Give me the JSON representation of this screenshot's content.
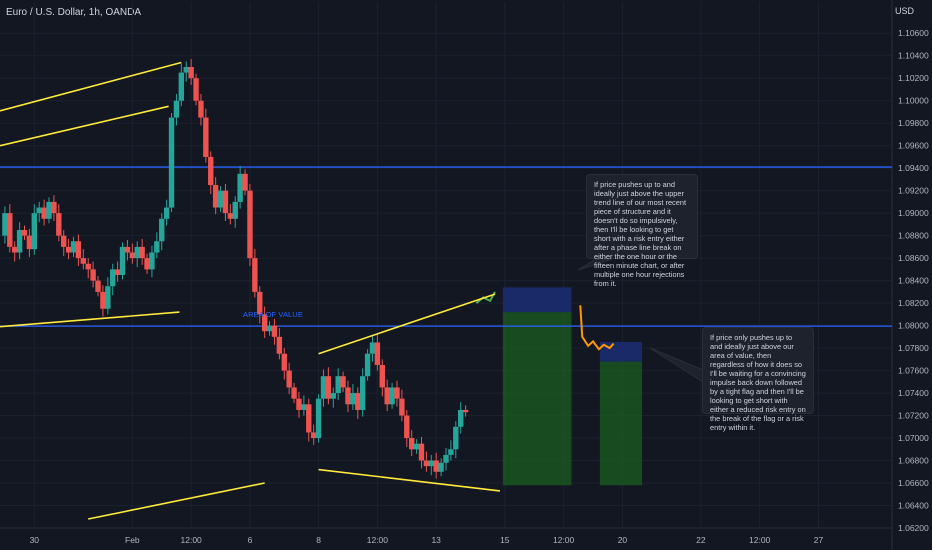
{
  "header": {
    "symbol": "Euro / U.S. Dollar, 1h, OANDA",
    "currency": "USD"
  },
  "colors": {
    "bg": "#131722",
    "up": "#26a69a",
    "down": "#ef5350",
    "trend": "#ffeb3b",
    "level": "#2962ff",
    "target": "#1b5e20",
    "stop": "#1a2a6c",
    "grid": "#1c2130"
  },
  "chart_data": {
    "type": "candlestick",
    "ylim": [
      1.062,
      1.107
    ],
    "y_ticks": [
      "1.10600",
      "1.10400",
      "1.10200",
      "1.10000",
      "1.09800",
      "1.09600",
      "1.09400",
      "1.09200",
      "1.09000",
      "1.08800",
      "1.08600",
      "1.08400",
      "1.08200",
      "1.08000",
      "1.07800",
      "1.07600",
      "1.07400",
      "1.07200",
      "1.07000",
      "1.06800",
      "1.06600",
      "1.06400",
      "1.06200"
    ],
    "y_tick_values": [
      1.106,
      1.104,
      1.102,
      1.1,
      1.098,
      1.096,
      1.094,
      1.092,
      1.09,
      1.088,
      1.086,
      1.084,
      1.082,
      1.08,
      1.078,
      1.076,
      1.074,
      1.072,
      1.07,
      1.068,
      1.066,
      1.064,
      1.062
    ],
    "x_ticks": [
      {
        "label": "30",
        "x": 0.5
      },
      {
        "label": "Feb",
        "x": 10.5
      },
      {
        "label": "12:00",
        "x": 16.5
      },
      {
        "label": "6",
        "x": 22.5
      },
      {
        "label": "8",
        "x": 29.5
      },
      {
        "label": "12:00",
        "x": 35.5
      },
      {
        "label": "13",
        "x": 41.5
      },
      {
        "label": "15",
        "x": 48.5
      },
      {
        "label": "12:00",
        "x": 54.5
      },
      {
        "label": "20",
        "x": 60.5
      },
      {
        "label": "22",
        "x": 68.5
      },
      {
        "label": "12:00",
        "x": 74.5
      },
      {
        "label": "27",
        "x": 80.5
      }
    ],
    "x_range": [
      -3,
      88
    ],
    "price_path": [
      {
        "x": -3,
        "y": 1.088
      },
      {
        "x": -2.5,
        "y": 1.09
      },
      {
        "x": -2,
        "y": 1.087
      },
      {
        "x": -1.5,
        "y": 1.0865
      },
      {
        "x": -1,
        "y": 1.0885
      },
      {
        "x": -0.5,
        "y": 1.088
      },
      {
        "x": 0,
        "y": 1.0868
      },
      {
        "x": 0.5,
        "y": 1.09
      },
      {
        "x": 1,
        "y": 1.0905
      },
      {
        "x": 1.5,
        "y": 1.0895
      },
      {
        "x": 2,
        "y": 1.091
      },
      {
        "x": 2.5,
        "y": 1.09
      },
      {
        "x": 3,
        "y": 1.088
      },
      {
        "x": 3.5,
        "y": 1.087
      },
      {
        "x": 4,
        "y": 1.0865
      },
      {
        "x": 4.5,
        "y": 1.0875
      },
      {
        "x": 5,
        "y": 1.086
      },
      {
        "x": 5.5,
        "y": 1.0855
      },
      {
        "x": 6,
        "y": 1.085
      },
      {
        "x": 6.5,
        "y": 1.084
      },
      {
        "x": 7,
        "y": 1.083
      },
      {
        "x": 7.5,
        "y": 1.0815
      },
      {
        "x": 8,
        "y": 1.0835
      },
      {
        "x": 8.5,
        "y": 1.085
      },
      {
        "x": 9,
        "y": 1.0845
      },
      {
        "x": 9.5,
        "y": 1.087
      },
      {
        "x": 10,
        "y": 1.0865
      },
      {
        "x": 10.5,
        "y": 1.086
      },
      {
        "x": 11,
        "y": 1.087
      },
      {
        "x": 11.5,
        "y": 1.086
      },
      {
        "x": 12,
        "y": 1.085
      },
      {
        "x": 12.5,
        "y": 1.0865
      },
      {
        "x": 13,
        "y": 1.0875
      },
      {
        "x": 13.5,
        "y": 1.0895
      },
      {
        "x": 14,
        "y": 1.0905
      },
      {
        "x": 14.5,
        "y": 1.0985
      },
      {
        "x": 15,
        "y": 1.1
      },
      {
        "x": 15.5,
        "y": 1.1025
      },
      {
        "x": 16,
        "y": 1.103
      },
      {
        "x": 16.5,
        "y": 1.102
      },
      {
        "x": 17,
        "y": 1.1
      },
      {
        "x": 17.5,
        "y": 1.0985
      },
      {
        "x": 18,
        "y": 1.095
      },
      {
        "x": 18.5,
        "y": 1.0925
      },
      {
        "x": 19,
        "y": 1.0905
      },
      {
        "x": 19.5,
        "y": 1.092
      },
      {
        "x": 20,
        "y": 1.09
      },
      {
        "x": 20.5,
        "y": 1.0895
      },
      {
        "x": 21,
        "y": 1.091
      },
      {
        "x": 21.5,
        "y": 1.0935
      },
      {
        "x": 22,
        "y": 1.092
      },
      {
        "x": 22.5,
        "y": 1.086
      },
      {
        "x": 23,
        "y": 1.083
      },
      {
        "x": 23.5,
        "y": 1.081
      },
      {
        "x": 24,
        "y": 1.0795
      },
      {
        "x": 24.5,
        "y": 1.08
      },
      {
        "x": 25,
        "y": 1.079
      },
      {
        "x": 25.5,
        "y": 1.0775
      },
      {
        "x": 26,
        "y": 1.076
      },
      {
        "x": 26.5,
        "y": 1.0745
      },
      {
        "x": 27,
        "y": 1.0735
      },
      {
        "x": 27.5,
        "y": 1.0725
      },
      {
        "x": 28,
        "y": 1.073
      },
      {
        "x": 28.5,
        "y": 1.0705
      },
      {
        "x": 29,
        "y": 1.07
      },
      {
        "x": 29.5,
        "y": 1.0735
      },
      {
        "x": 30,
        "y": 1.0755
      },
      {
        "x": 30.5,
        "y": 1.0735
      },
      {
        "x": 31,
        "y": 1.074
      },
      {
        "x": 31.5,
        "y": 1.0755
      },
      {
        "x": 32,
        "y": 1.0745
      },
      {
        "x": 32.5,
        "y": 1.073
      },
      {
        "x": 33,
        "y": 1.074
      },
      {
        "x": 33.5,
        "y": 1.0725
      },
      {
        "x": 34,
        "y": 1.0755
      },
      {
        "x": 34.5,
        "y": 1.0775
      },
      {
        "x": 35,
        "y": 1.0785
      },
      {
        "x": 35.5,
        "y": 1.0765
      },
      {
        "x": 36,
        "y": 1.0745
      },
      {
        "x": 36.5,
        "y": 1.073
      },
      {
        "x": 37,
        "y": 1.0745
      },
      {
        "x": 37.5,
        "y": 1.0735
      },
      {
        "x": 38,
        "y": 1.072
      },
      {
        "x": 38.5,
        "y": 1.07
      },
      {
        "x": 39,
        "y": 1.069
      },
      {
        "x": 39.5,
        "y": 1.0695
      },
      {
        "x": 40,
        "y": 1.068
      },
      {
        "x": 40.5,
        "y": 1.0675
      },
      {
        "x": 41,
        "y": 1.068
      },
      {
        "x": 41.5,
        "y": 1.067
      },
      {
        "x": 42,
        "y": 1.0678
      },
      {
        "x": 42.5,
        "y": 1.0685
      },
      {
        "x": 43,
        "y": 1.069
      },
      {
        "x": 43.5,
        "y": 1.071
      },
      {
        "x": 44,
        "y": 1.0725
      },
      {
        "x": 44.5,
        "y": 1.0723
      }
    ],
    "projections": [
      {
        "name": "upper-projection",
        "points": [
          {
            "x": 45.6,
            "y": 1.082
          },
          {
            "x": 46.3,
            "y": 1.0825
          },
          {
            "x": 47,
            "y": 1.0822
          },
          {
            "x": 47.5,
            "y": 1.083
          }
        ]
      },
      {
        "name": "lower-projection",
        "points": [
          {
            "x": 56.2,
            "y": 1.0818
          },
          {
            "x": 56.4,
            "y": 1.079
          },
          {
            "x": 57,
            "y": 1.0782
          },
          {
            "x": 57.5,
            "y": 1.0786
          },
          {
            "x": 58.1,
            "y": 1.0779
          },
          {
            "x": 58.6,
            "y": 1.0783
          },
          {
            "x": 59.2,
            "y": 1.078
          },
          {
            "x": 59.6,
            "y": 1.0784
          }
        ]
      }
    ],
    "horizontal_lines": [
      {
        "name": "resistance-line",
        "y": 1.0941,
        "x_from": -3,
        "x_to": 88
      },
      {
        "name": "area-of-value-line",
        "y": 1.07995,
        "x_from": -3,
        "x_to": 88
      }
    ],
    "trendlines": [
      {
        "name": "upper-channel-1",
        "from": {
          "x": -3,
          "y": 1.0991
        },
        "to": {
          "x": 15.5,
          "y": 1.1034
        }
      },
      {
        "name": "upper-channel-2",
        "from": {
          "x": -3,
          "y": 1.096
        },
        "to": {
          "x": 14.2,
          "y": 1.0995
        }
      },
      {
        "name": "lower-channel-1",
        "from": {
          "x": -3,
          "y": 1.0799
        },
        "to": {
          "x": 15.3,
          "y": 1.0812
        }
      },
      {
        "name": "lower-channel-2",
        "from": {
          "x": 6,
          "y": 1.0628
        },
        "to": {
          "x": 24,
          "y": 1.066
        }
      },
      {
        "name": "wedge-upper",
        "from": {
          "x": 29.5,
          "y": 1.0775
        },
        "to": {
          "x": 47.5,
          "y": 1.0828
        }
      },
      {
        "name": "wedge-lower",
        "from": {
          "x": 29.5,
          "y": 1.0672
        },
        "to": {
          "x": 48,
          "y": 1.0653
        }
      }
    ],
    "positions": [
      {
        "name": "position-1",
        "x_from": 48.3,
        "x_to": 55.3,
        "stop_top": 1.0834,
        "entry": 1.0812,
        "target": 1.0658
      },
      {
        "name": "position-2",
        "x_from": 58.2,
        "x_to": 62.5,
        "stop_top": 1.07855,
        "entry": 1.0768,
        "target": 1.0658
      }
    ],
    "annotations": [
      {
        "name": "area-of-value-label",
        "text": "AREA OF VALUE"
      }
    ]
  },
  "notes": {
    "note1": "If price pushes up to and ideally just above the upper trend line of our most recent piece of structure and it doesn't do so impulsively, then I'll be looking to get short with a risk entry either after a phase line break on either the one hour or the fifteen minute chart, or after multiple one hour rejections from it.",
    "note2": "If price only pushes up to and ideally just above our area of value, then regardless of how it does so I'll be waiting for a convincing impulse back down followed by a tight flag and then I'll be looking to get short with either a reduced risk entry on the break of the flag or a risk entry within it."
  }
}
